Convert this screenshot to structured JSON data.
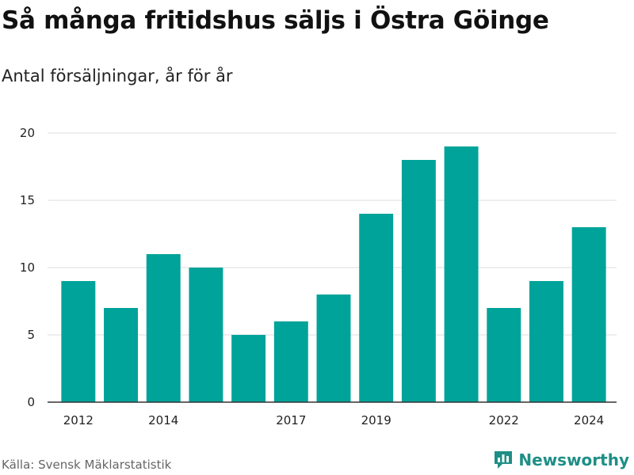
{
  "title": "Så många fritidshus säljs i Östra Göinge",
  "subtitle": "Antal försäljningar, år för år",
  "source": "Källa: Svensk Mäklarstatistik",
  "brand": {
    "name": "Newsworthy",
    "icon": "newsworthy-logo-icon",
    "color": "#1e8f86"
  },
  "colors": {
    "bar": "#00a39a",
    "grid": "#dddddd",
    "axis": "#333333"
  },
  "chart_data": {
    "type": "bar",
    "categories": [
      "2012",
      "2013",
      "2014",
      "2015",
      "2016",
      "2017",
      "2018",
      "2019",
      "2020",
      "2021",
      "2022",
      "2023",
      "2024"
    ],
    "values": [
      9,
      7,
      11,
      10,
      5,
      6,
      8,
      14,
      18,
      19,
      7,
      9,
      13
    ],
    "title": "Så många fritidshus säljs i Östra Göinge",
    "subtitle": "Antal försäljningar, år för år",
    "xlabel": "",
    "ylabel": "",
    "ylim": [
      0,
      20
    ],
    "yticks": [
      0,
      5,
      10,
      15,
      20
    ],
    "xtick_labels": [
      "2012",
      "2014",
      "2017",
      "2019",
      "2022",
      "2024"
    ],
    "grid": true,
    "legend": "none"
  }
}
